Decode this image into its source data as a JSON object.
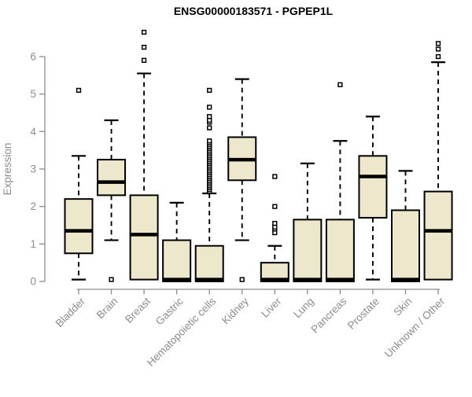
{
  "chart_data": {
    "type": "boxplot",
    "title": "ENSG00000183571 - PGPEP1L",
    "ylabel": "Expression",
    "xlabel": "",
    "ylim": [
      0,
      6.8
    ],
    "yticks": [
      0,
      1,
      2,
      3,
      4,
      5,
      6
    ],
    "grid": false,
    "legend": "none",
    "categories": [
      "Bladder",
      "Brain",
      "Breast",
      "Gastric",
      "Hematopoietic cells",
      "Kidney",
      "Liver",
      "Lung",
      "Pancreas",
      "Prostate",
      "Skin",
      "Unknown / Other"
    ],
    "boxes": [
      {
        "category": "Bladder",
        "whisker_low": 0.05,
        "q1": 0.75,
        "median": 1.35,
        "q3": 2.2,
        "whisker_high": 3.35,
        "outliers": [
          5.1
        ]
      },
      {
        "category": "Brain",
        "whisker_low": 1.1,
        "q1": 2.3,
        "median": 2.65,
        "q3": 3.25,
        "whisker_high": 4.3,
        "outliers": [
          0.05
        ]
      },
      {
        "category": "Breast",
        "whisker_low": 0.05,
        "q1": 0.05,
        "median": 1.25,
        "q3": 2.3,
        "whisker_high": 5.55,
        "outliers": [
          5.9,
          6.25,
          6.65
        ]
      },
      {
        "category": "Gastric",
        "whisker_low": 0.0,
        "q1": 0.0,
        "median": 0.05,
        "q3": 1.1,
        "whisker_high": 2.1,
        "outliers": []
      },
      {
        "category": "Hematopoietic cells",
        "whisker_low": 0.0,
        "q1": 0.0,
        "median": 0.05,
        "q3": 0.95,
        "whisker_high": 2.35,
        "outliers": [
          2.4,
          2.45,
          2.5,
          2.55,
          2.6,
          2.65,
          2.7,
          2.75,
          2.8,
          2.85,
          2.9,
          2.95,
          3.0,
          3.05,
          3.1,
          3.15,
          3.2,
          3.25,
          3.3,
          3.35,
          3.4,
          3.45,
          3.5,
          3.55,
          3.6,
          3.65,
          3.7,
          3.75,
          4.1,
          4.25,
          4.3,
          4.4,
          4.65,
          5.1
        ]
      },
      {
        "category": "Kidney",
        "whisker_low": 1.1,
        "q1": 2.7,
        "median": 3.25,
        "q3": 3.85,
        "whisker_high": 5.4,
        "outliers": [
          0.05
        ]
      },
      {
        "category": "Liver",
        "whisker_low": 0.0,
        "q1": 0.0,
        "median": 0.05,
        "q3": 0.5,
        "whisker_high": 0.95,
        "outliers": [
          1.3,
          1.4,
          1.45,
          1.55,
          2.0,
          2.8
        ]
      },
      {
        "category": "Lung",
        "whisker_low": 0.0,
        "q1": 0.0,
        "median": 0.05,
        "q3": 1.65,
        "whisker_high": 3.15,
        "outliers": []
      },
      {
        "category": "Pancreas",
        "whisker_low": 0.0,
        "q1": 0.0,
        "median": 0.05,
        "q3": 1.65,
        "whisker_high": 3.75,
        "outliers": [
          5.25
        ]
      },
      {
        "category": "Prostate",
        "whisker_low": 0.05,
        "q1": 1.7,
        "median": 2.8,
        "q3": 3.35,
        "whisker_high": 4.4,
        "outliers": []
      },
      {
        "category": "Skin",
        "whisker_low": 0.0,
        "q1": 0.0,
        "median": 0.05,
        "q3": 1.9,
        "whisker_high": 2.95,
        "outliers": []
      },
      {
        "category": "Unknown / Other",
        "whisker_low": 0.05,
        "q1": 0.05,
        "median": 1.35,
        "q3": 2.4,
        "whisker_high": 5.85,
        "outliers": [
          6.0,
          6.2,
          6.35
        ]
      }
    ],
    "colors": {
      "box_fill": "#EDE8CC",
      "box_border": "#000000",
      "median": "#000000",
      "whisker": "#000000",
      "outlier_stroke": "#000000",
      "outlier_fill": "#ffffff",
      "axis": "#8C8C8C",
      "tick_label": "#8C8C8C",
      "title": "#000000",
      "background": "#ffffff"
    }
  }
}
